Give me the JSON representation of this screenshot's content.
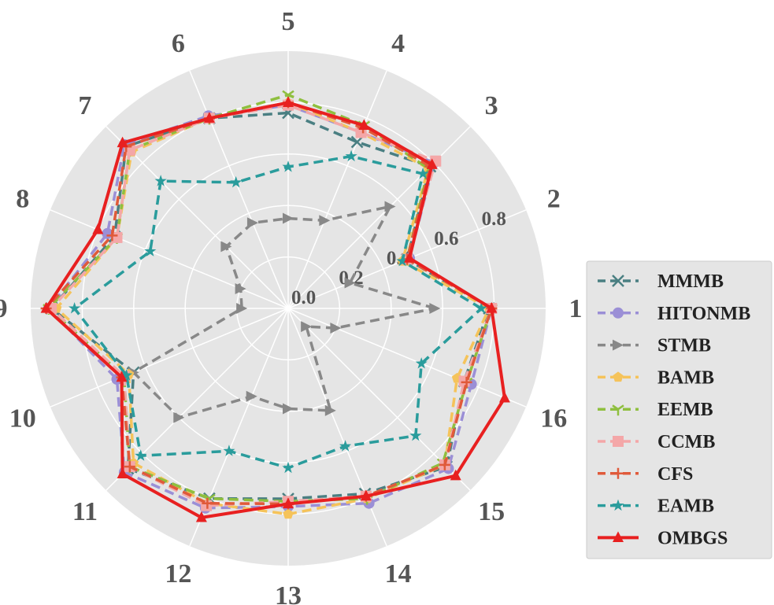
{
  "chart_data": {
    "type": "radar",
    "title": "",
    "axes": [
      "1",
      "2",
      "3",
      "4",
      "5",
      "6",
      "7",
      "8",
      "9",
      "10",
      "11",
      "12",
      "13",
      "14",
      "15",
      "16"
    ],
    "radial_ticks": [
      "0.0",
      "0.2",
      "0.4",
      "0.6",
      "0.8"
    ],
    "rlim": [
      0,
      1.0
    ],
    "legend_position": "right",
    "series": [
      {
        "name": "MMMB",
        "color": "#4a7f82",
        "marker": "x",
        "dash": "dashed",
        "values": [
          0.78,
          0.5,
          0.78,
          0.7,
          0.76,
          0.8,
          0.89,
          0.73,
          0.92,
          0.65,
          0.88,
          0.8,
          0.74,
          0.78,
          0.87,
          0.74
        ]
      },
      {
        "name": "HITONMB",
        "color": "#9b8fd6",
        "marker": "o",
        "dash": "dashed",
        "values": [
          0.79,
          0.51,
          0.8,
          0.74,
          0.79,
          0.81,
          0.9,
          0.76,
          0.93,
          0.72,
          0.9,
          0.84,
          0.77,
          0.82,
          0.88,
          0.77
        ]
      },
      {
        "name": "STMB",
        "color": "#888888",
        "marker": ">",
        "dash": "dashed",
        "values": [
          0.57,
          0.26,
          0.56,
          0.37,
          0.35,
          0.36,
          0.34,
          0.2,
          0.18,
          0.65,
          0.6,
          0.37,
          0.39,
          0.43,
          0.1,
          0.2
        ]
      },
      {
        "name": "BAMB",
        "color": "#f5c35a",
        "marker": "p",
        "dash": "dashed",
        "values": [
          0.78,
          0.48,
          0.77,
          0.74,
          0.8,
          0.8,
          0.86,
          0.72,
          0.9,
          0.67,
          0.85,
          0.82,
          0.8,
          0.8,
          0.86,
          0.71
        ]
      },
      {
        "name": "EEMB",
        "color": "#8fbf3f",
        "marker": "1",
        "dash": "dashed",
        "values": [
          0.79,
          0.5,
          0.77,
          0.77,
          0.83,
          0.8,
          0.87,
          0.72,
          0.93,
          0.69,
          0.87,
          0.8,
          0.75,
          0.8,
          0.85,
          0.75
        ]
      },
      {
        "name": "CCMB",
        "color": "#f4a7a8",
        "marker": "s",
        "dash": "dashed",
        "values": [
          0.79,
          0.5,
          0.81,
          0.74,
          0.79,
          0.8,
          0.87,
          0.72,
          0.92,
          0.69,
          0.87,
          0.83,
          0.75,
          0.79,
          0.86,
          0.74
        ]
      },
      {
        "name": "CFS",
        "color": "#e05a3a",
        "marker": "+",
        "dash": "dashed",
        "values": [
          0.79,
          0.5,
          0.78,
          0.76,
          0.8,
          0.8,
          0.89,
          0.74,
          0.94,
          0.7,
          0.87,
          0.82,
          0.76,
          0.79,
          0.86,
          0.75
        ]
      },
      {
        "name": "EAMB",
        "color": "#2a9c9c",
        "marker": "*",
        "dash": "dashed",
        "values": [
          0.75,
          0.48,
          0.74,
          0.64,
          0.55,
          0.53,
          0.7,
          0.58,
          0.83,
          0.68,
          0.81,
          0.6,
          0.62,
          0.58,
          0.7,
          0.56
        ]
      },
      {
        "name": "OMBGS",
        "color": "#e82020",
        "marker": "^",
        "dash": "solid",
        "values": [
          0.79,
          0.51,
          0.79,
          0.77,
          0.8,
          0.8,
          0.91,
          0.8,
          0.94,
          0.7,
          0.91,
          0.88,
          0.76,
          0.79,
          0.92,
          0.91
        ]
      }
    ]
  }
}
